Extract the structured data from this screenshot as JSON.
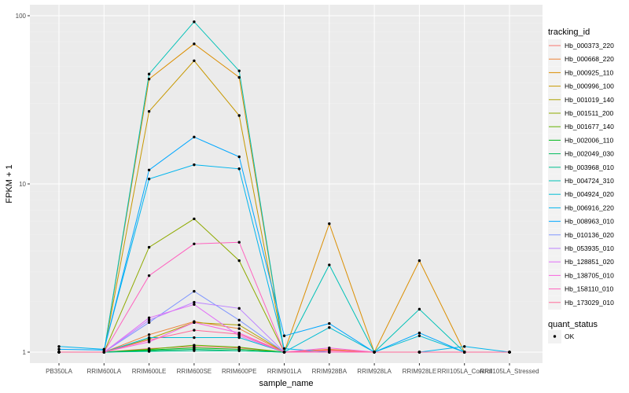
{
  "chart_data": {
    "type": "line",
    "xlabel": "sample_name",
    "ylabel": "FPKM + 1",
    "y_scale": "log10",
    "ylim": [
      0.92,
      110
    ],
    "y_ticks": [
      1,
      10,
      100
    ],
    "y_tick_labels": [
      "1",
      "10",
      "100"
    ],
    "grid": true,
    "legend_placement": "right",
    "categories": [
      "PB350LA",
      "RRIM600LA",
      "RRIM600LE",
      "RRIM600SE",
      "RRIM600PE",
      "RRIM901LA",
      "RRIM928BA",
      "RRIM928LA",
      "RRIM928LE",
      "RRII105LA_Control",
      "RRII105LA_Stressed"
    ],
    "legend_title": "tracking_id",
    "series": [
      {
        "name": "Hb_000373_220",
        "color": "#F8766D",
        "values": [
          1,
          1,
          1.05,
          1.08,
          1.06,
          1,
          1.03,
          1,
          1,
          1,
          1
        ]
      },
      {
        "name": "Hb_000668_220",
        "color": "#EC8239",
        "values": [
          1,
          1,
          1.27,
          1.52,
          1.38,
          1,
          1.04,
          1,
          1,
          1,
          1
        ]
      },
      {
        "name": "Hb_000925_110",
        "color": "#DB8E00",
        "values": [
          1,
          1,
          42,
          68,
          43,
          1,
          5.8,
          1,
          3.5,
          1,
          1
        ]
      },
      {
        "name": "Hb_000996_100",
        "color": "#C79800",
        "values": [
          1,
          1,
          27,
          54,
          25.5,
          1,
          1,
          1,
          1,
          1,
          1
        ]
      },
      {
        "name": "Hb_001019_140",
        "color": "#AEA200",
        "values": [
          1,
          1,
          1.2,
          1.5,
          1.45,
          1,
          1,
          1,
          1,
          1,
          1
        ]
      },
      {
        "name": "Hb_001511_200",
        "color": "#8FAA00",
        "values": [
          1,
          1,
          4.2,
          6.2,
          3.5,
          1,
          1,
          1,
          1,
          1,
          1
        ]
      },
      {
        "name": "Hb_001677_140",
        "color": "#64B200",
        "values": [
          1,
          1,
          1.04,
          1.1,
          1.07,
          1,
          1,
          1,
          1,
          1,
          1
        ]
      },
      {
        "name": "Hb_002006_110",
        "color": "#00B81B",
        "values": [
          1,
          1,
          1.03,
          1.06,
          1.04,
          1,
          1,
          1,
          1,
          1,
          1
        ]
      },
      {
        "name": "Hb_002049_030",
        "color": "#00BD5C",
        "values": [
          1,
          1,
          1.02,
          1.04,
          1.02,
          1,
          1,
          1,
          1,
          1,
          1
        ]
      },
      {
        "name": "Hb_003968_010",
        "color": "#00C08E",
        "values": [
          1,
          1,
          1.01,
          1.02,
          1.02,
          1,
          1,
          1,
          1,
          1,
          1
        ]
      },
      {
        "name": "Hb_004724_310",
        "color": "#00C1B7",
        "values": [
          1,
          1,
          45,
          92,
          47,
          1,
          3.3,
          1,
          1.8,
          1,
          1
        ]
      },
      {
        "name": "Hb_004924_020",
        "color": "#00BDD4",
        "values": [
          1,
          1,
          1.22,
          1.22,
          1.22,
          1,
          1.4,
          1,
          1.25,
          1,
          1
        ]
      },
      {
        "name": "Hb_006916_220",
        "color": "#00B5EE",
        "values": [
          1.08,
          1.04,
          10.7,
          13,
          12.3,
          1.05,
          1,
          1,
          1,
          1.08,
          1
        ]
      },
      {
        "name": "Hb_008963_010",
        "color": "#00A7FF",
        "values": [
          1.04,
          1.03,
          12.1,
          19,
          14.5,
          1.25,
          1.48,
          1,
          1.3,
          1,
          1
        ]
      },
      {
        "name": "Hb_010136_020",
        "color": "#7F96FF",
        "values": [
          1,
          1,
          1.5,
          2.3,
          1.55,
          1,
          1,
          1,
          1,
          1,
          1
        ]
      },
      {
        "name": "Hb_053935_010",
        "color": "#BC81FF",
        "values": [
          1,
          1,
          1.55,
          1.98,
          1.82,
          1,
          1,
          1,
          1,
          1,
          1
        ]
      },
      {
        "name": "Hb_128851_020",
        "color": "#E26EF7",
        "values": [
          1,
          1,
          1.6,
          1.92,
          1.25,
          1,
          1,
          1,
          1,
          1,
          1
        ]
      },
      {
        "name": "Hb_138705_010",
        "color": "#F863DF",
        "values": [
          1,
          1,
          1.15,
          1.5,
          1.3,
          1,
          1.06,
          1,
          1,
          1,
          1
        ]
      },
      {
        "name": "Hb_158110_010",
        "color": "#FF62BF",
        "values": [
          1,
          1,
          2.85,
          4.4,
          4.5,
          1,
          1,
          1,
          1,
          1,
          1
        ]
      },
      {
        "name": "Hb_173029_010",
        "color": "#FF6A98",
        "values": [
          1,
          1,
          1.18,
          1.35,
          1.28,
          1,
          1.02,
          1,
          1,
          1,
          1
        ]
      }
    ],
    "shape_legend": {
      "title": "quant_status",
      "items": [
        "OK"
      ]
    },
    "colors": {
      "panel": "#EBEBEB",
      "grid_major": "#FFFFFF",
      "grid_minor": "#F2F2F2",
      "point": "#000000"
    }
  }
}
